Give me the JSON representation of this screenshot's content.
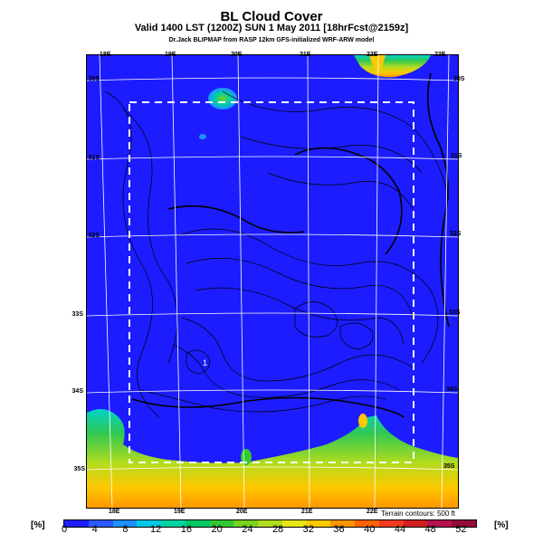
{
  "header": {
    "title": "BL Cloud Cover",
    "subtitle": "Valid 1400 LST (1200Z) SUN 1 May 2011 [18hrFcst@2159z]",
    "credit": "Dr.Jack BLIPMAP from RASP 12km GFS-initialized WRF-ARW model"
  },
  "map": {
    "top_longitudes": [
      "18E",
      "19E",
      "20E",
      "21E",
      "22E",
      "23E"
    ],
    "bottom_longitudes": [
      "18E",
      "19E",
      "20E",
      "21E",
      "22E"
    ],
    "left_latitudes": [
      "30S",
      "31S",
      "32S",
      "33S",
      "34S",
      "35S"
    ],
    "right_latitudes": [
      "30S",
      "31S",
      "32S",
      "33S",
      "34S",
      "35S"
    ],
    "marker": "1",
    "terrain_note": "Terrain contours: 500 ft",
    "colors": {
      "background": "#1c1cff",
      "contour": "#000000",
      "grid": "#ffffff",
      "domain_box": "#ffffff"
    }
  },
  "colorbar": {
    "unit_left": "[%]",
    "unit_right": "[%]",
    "labels": [
      "0",
      "4",
      "8",
      "12",
      "16",
      "20",
      "24",
      "28",
      "32",
      "36",
      "40",
      "44",
      "48",
      "52"
    ],
    "colors": [
      "#1e1eff",
      "#2a5aff",
      "#1e90ff",
      "#00c8e6",
      "#00d2a0",
      "#00c864",
      "#32c832",
      "#78d21e",
      "#b4dc1e",
      "#e6e614",
      "#ffc800",
      "#ff9600",
      "#ff6400",
      "#f03c1e",
      "#d21e1e",
      "#b41450",
      "#960a3c"
    ]
  }
}
